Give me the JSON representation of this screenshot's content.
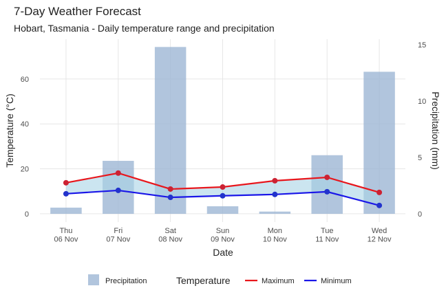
{
  "chart_data": {
    "type": "bar-line",
    "title": "7-Day Weather Forecast",
    "subtitle": "Hobart, Tasmania - Daily temperature range and precipitation",
    "x_label": "Date",
    "y_label": "Temperature (°C)",
    "y2_label": "Precipitation (mm)",
    "categories": [
      "Thu\n06 Nov",
      "Fri\n07 Nov",
      "Sat\n08 Nov",
      "Sun\n09 Nov",
      "Mon\n10 Nov",
      "Tue\n11 Nov",
      "Wed\n12 Nov"
    ],
    "ylim": [
      -3.7,
      77.7
    ],
    "yticks": [
      0,
      20,
      40,
      60
    ],
    "y2lim": [
      -0.73,
      15.49
    ],
    "y2ticks": [
      0,
      5,
      10,
      15
    ],
    "grid": true,
    "legend_title": "Temperature",
    "ribbon_color": "#a9d3e6",
    "series": [
      {
        "name": "Precipitation",
        "type": "bar",
        "axis": "y2",
        "color": "#9db7d5",
        "values": [
          0.55,
          4.7,
          14.8,
          0.67,
          0.2,
          5.2,
          12.6
        ]
      },
      {
        "name": "Maximum",
        "type": "line",
        "color": "#e8161c",
        "point_color": "#cc2233",
        "values": [
          13.8,
          18.1,
          11.0,
          11.9,
          14.7,
          16.2,
          9.5
        ]
      },
      {
        "name": "Minimum",
        "type": "line",
        "color": "#1a16e8",
        "point_color": "#2233cc",
        "values": [
          8.9,
          10.4,
          7.3,
          8.0,
          8.6,
          9.8,
          3.7
        ]
      }
    ]
  }
}
